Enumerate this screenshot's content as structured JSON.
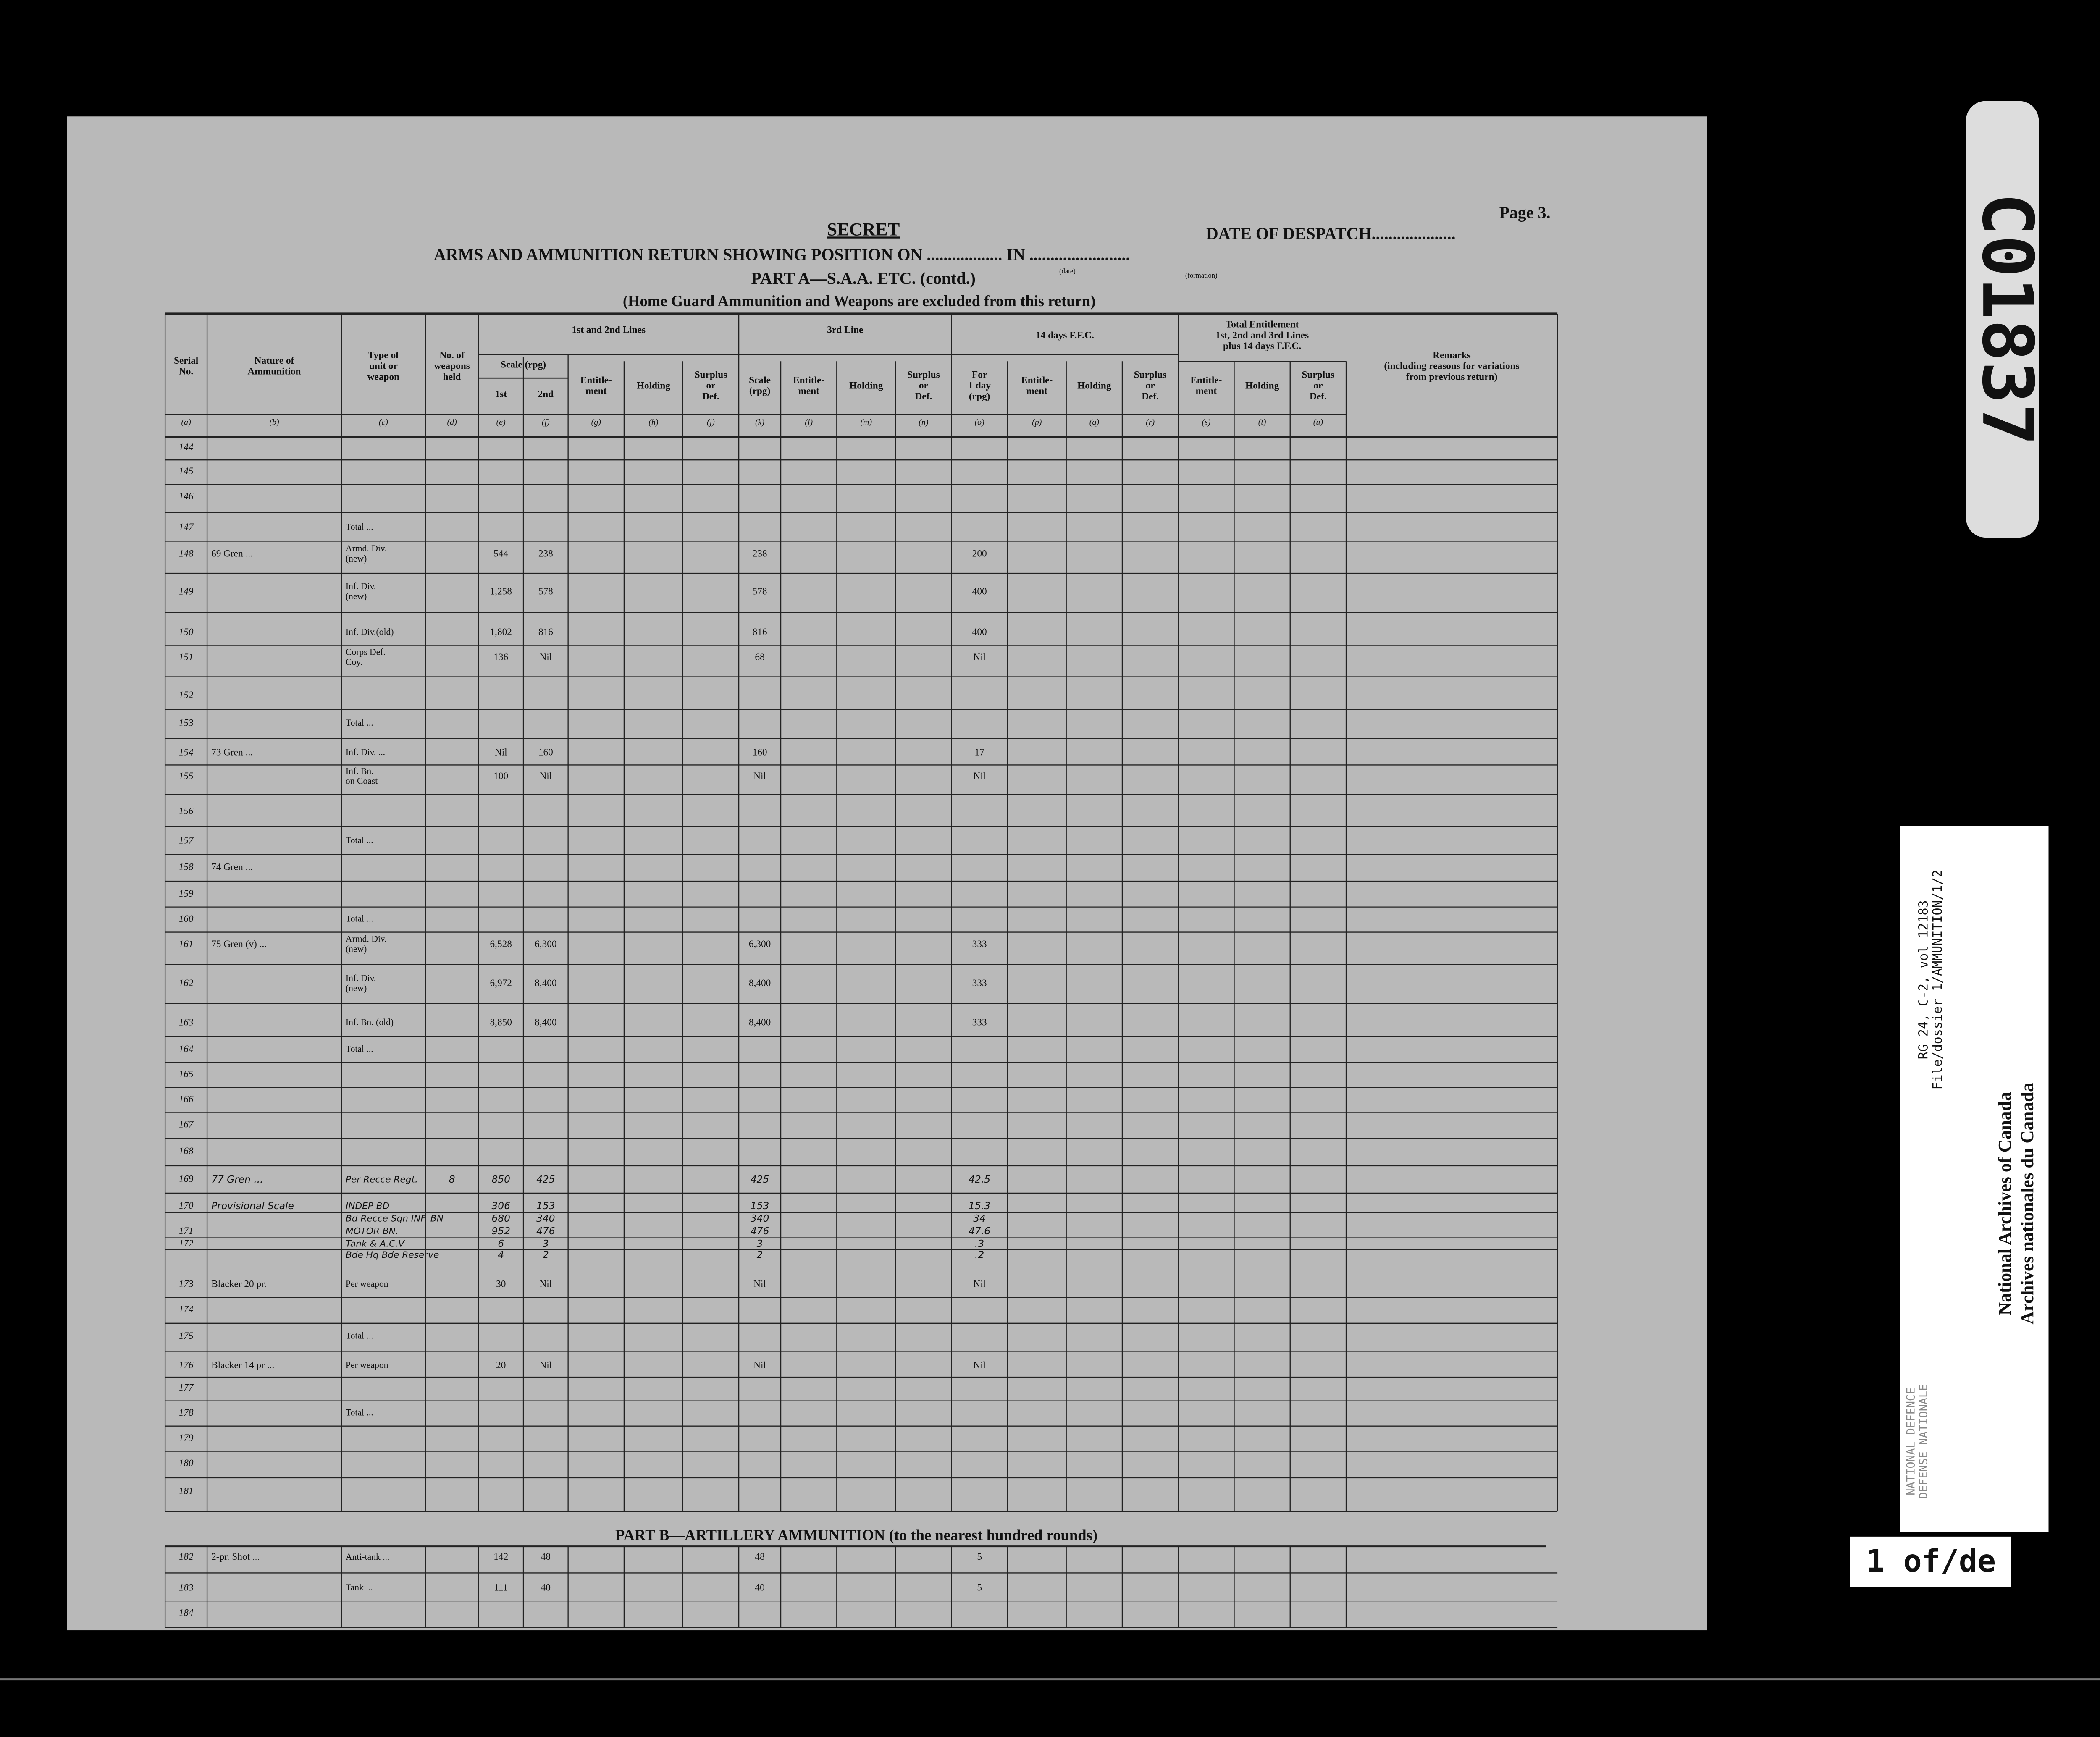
{
  "page_number": "Page 3.",
  "secret": "SECRET",
  "date_of_despatch": "DATE OF DESPATCH....................",
  "title": "ARMS AND AMMUNITION RETURN SHOWING POSITION ON .................. IN ........................",
  "title_notes": [
    "(date)",
    "(formation)"
  ],
  "part_a": "PART A—S.A.A. ETC. (contd.)",
  "note": "(Home Guard Ammunition and Weapons are excluded from this return)",
  "group_headers": {
    "lines_1_2": "1st and 2nd Lines",
    "scale": "Scale (rpg)",
    "line_3": "3rd Line",
    "ffc": "14 days F.F.C.",
    "total": "Total Entitlement\n1st, 2nd and 3rd Lines\nplus 14 days F.F.C."
  },
  "columns": [
    {
      "key": "a",
      "label": "Serial\nNo.",
      "letter": "(a)"
    },
    {
      "key": "b",
      "label": "Nature of\nAmmunition",
      "letter": "(b)"
    },
    {
      "key": "c",
      "label": "Type of\nunit or\nweapon",
      "letter": "(c)"
    },
    {
      "key": "d",
      "label": "No. of\nweapons\nheld",
      "letter": "(d)"
    },
    {
      "key": "e",
      "label": "1st",
      "letter": "(e)"
    },
    {
      "key": "f",
      "label": "2nd",
      "letter": "(f)"
    },
    {
      "key": "g",
      "label": "Entitle-\nment",
      "letter": "(g)"
    },
    {
      "key": "h",
      "label": "Holding",
      "letter": "(h)"
    },
    {
      "key": "j",
      "label": "Surplus\nor\nDef.",
      "letter": "(j)"
    },
    {
      "key": "k",
      "label": "Scale\n(rpg)",
      "letter": "(k)"
    },
    {
      "key": "l",
      "label": "Entitle-\nment",
      "letter": "(l)"
    },
    {
      "key": "m",
      "label": "Holding",
      "letter": "(m)"
    },
    {
      "key": "n",
      "label": "Surplus\nor\nDef.",
      "letter": "(n)"
    },
    {
      "key": "o",
      "label": "For\n1 day\n(rpg)",
      "letter": "(o)"
    },
    {
      "key": "p",
      "label": "Entitle-\nment",
      "letter": "(p)"
    },
    {
      "key": "q",
      "label": "Holding",
      "letter": "(q)"
    },
    {
      "key": "r",
      "label": "Surplus\nor\nDef.",
      "letter": "(r)"
    },
    {
      "key": "s",
      "label": "Entitle-\nment",
      "letter": "(s)"
    },
    {
      "key": "t",
      "label": "Holding",
      "letter": "(t)"
    },
    {
      "key": "u",
      "label": "Surplus\nor\nDef.",
      "letter": "(u)"
    },
    {
      "key": "remarks",
      "label": "Remarks\n(including reasons for variations\nfrom previous return)"
    }
  ],
  "rows": [
    {
      "a": "144"
    },
    {
      "a": "145"
    },
    {
      "a": "146"
    },
    {
      "a": "147",
      "c": "Total ..."
    },
    {
      "a": "148",
      "b": "69 Gren ...",
      "c": "Armd. Div.\n(new)",
      "e": "544",
      "f": "238",
      "k": "238",
      "o": "200"
    },
    {
      "a": "149",
      "c": "Inf. Div.\n(new)",
      "e": "1,258",
      "f": "578",
      "k": "578",
      "o": "400"
    },
    {
      "a": "150",
      "c": "Inf. Div.(old)",
      "e": "1,802",
      "f": "816",
      "k": "816",
      "o": "400"
    },
    {
      "a": "151",
      "c": "Corps Def.\nCoy.",
      "e": "136",
      "f": "Nil",
      "k": "68",
      "o": "Nil"
    },
    {
      "a": "152"
    },
    {
      "a": "153",
      "c": "Total ..."
    },
    {
      "a": "154",
      "b": "73 Gren ...",
      "c": "Inf. Div. ...",
      "e": "Nil",
      "f": "160",
      "k": "160",
      "o": "17"
    },
    {
      "a": "155",
      "c": "Inf. Bn.\non Coast",
      "e": "100",
      "f": "Nil",
      "k": "Nil",
      "o": "Nil"
    },
    {
      "a": "156"
    },
    {
      "a": "157",
      "c": "Total ..."
    },
    {
      "a": "158",
      "b": "74 Gren ..."
    },
    {
      "a": "159"
    },
    {
      "a": "160",
      "c": "Total ..."
    },
    {
      "a": "161",
      "b": "75 Gren (v) ...",
      "c": "Armd. Div.\n(new)",
      "e": "6,528",
      "f": "6,300",
      "k": "6,300",
      "o": "333"
    },
    {
      "a": "162",
      "c": "Inf. Div.\n(new)",
      "e": "6,972",
      "f": "8,400",
      "k": "8,400",
      "o": "333"
    },
    {
      "a": "163",
      "c": "Inf. Bn. (old)",
      "e": "8,850",
      "f": "8,400",
      "k": "8,400",
      "o": "333"
    },
    {
      "a": "164",
      "c": "Total ..."
    },
    {
      "a": "165"
    },
    {
      "a": "166"
    },
    {
      "a": "167"
    },
    {
      "a": "168"
    },
    {
      "a": "169",
      "b": "77 Gren ...",
      "c": "Per Recce Regt.",
      "d": "8",
      "e": "850",
      "f": "425",
      "k": "425",
      "o": "42.5"
    },
    {
      "a": "170",
      "b": "Provisional Scale",
      "c": "INDEP BD",
      "e": "306",
      "f": "153",
      "k": "153",
      "o": "15.3"
    },
    {
      "c": "Bd Recce Sqn INF. BN",
      "e": "680",
      "f": "340",
      "k": "340",
      "o": "34"
    },
    {
      "a": "171",
      "c": "MOTOR BN.",
      "e": "952",
      "f": "476",
      "k": "476",
      "o": "47.6"
    },
    {
      "a": "172",
      "c": "Tank & A.C.V",
      "e": "6",
      "f": "3",
      "k": "3",
      "o": ".3"
    },
    {
      "c": "Bde Hq Bde Reserve",
      "e": "4",
      "f": "2",
      "k": "2",
      "o": ".2"
    },
    {
      "a": "173",
      "b": "Blacker 20 pr.",
      "c": "Per weapon",
      "e": "30",
      "f": "Nil",
      "k": "Nil",
      "o": "Nil"
    },
    {
      "a": "174"
    },
    {
      "a": "175",
      "c": "Total ..."
    },
    {
      "a": "176",
      "b": "Blacker 14 pr ...",
      "c": "Per weapon",
      "e": "20",
      "f": "Nil",
      "k": "Nil",
      "o": "Nil"
    },
    {
      "a": "177"
    },
    {
      "a": "178",
      "c": "Total ..."
    },
    {
      "a": "179"
    },
    {
      "a": "180"
    },
    {
      "a": "181"
    }
  ],
  "part_b": "PART B—ARTILLERY AMMUNITION (to the nearest hundred rounds)",
  "rows_b": [
    {
      "a": "182",
      "b": "2-pr. Shot ...",
      "c": "Anti-tank ...",
      "e": "142",
      "f": "48",
      "k": "48",
      "o": "5"
    },
    {
      "a": "183",
      "c": "Tank ...",
      "e": "111",
      "f": "40",
      "k": "40",
      "o": "5"
    },
    {
      "a": "184"
    }
  ],
  "reel_number": "C01837",
  "archive_stamp": [
    "National Archives of Canada",
    "Archives nationales du Canada"
  ],
  "reference": [
    "RG 24, C-2, vol 12183",
    "File/dossier 1/AMMUNITION/1/2"
  ],
  "department": [
    "NATIONAL DEFENCE",
    "DEFENSE NATIONALE"
  ],
  "frame_label": "1 of/de"
}
